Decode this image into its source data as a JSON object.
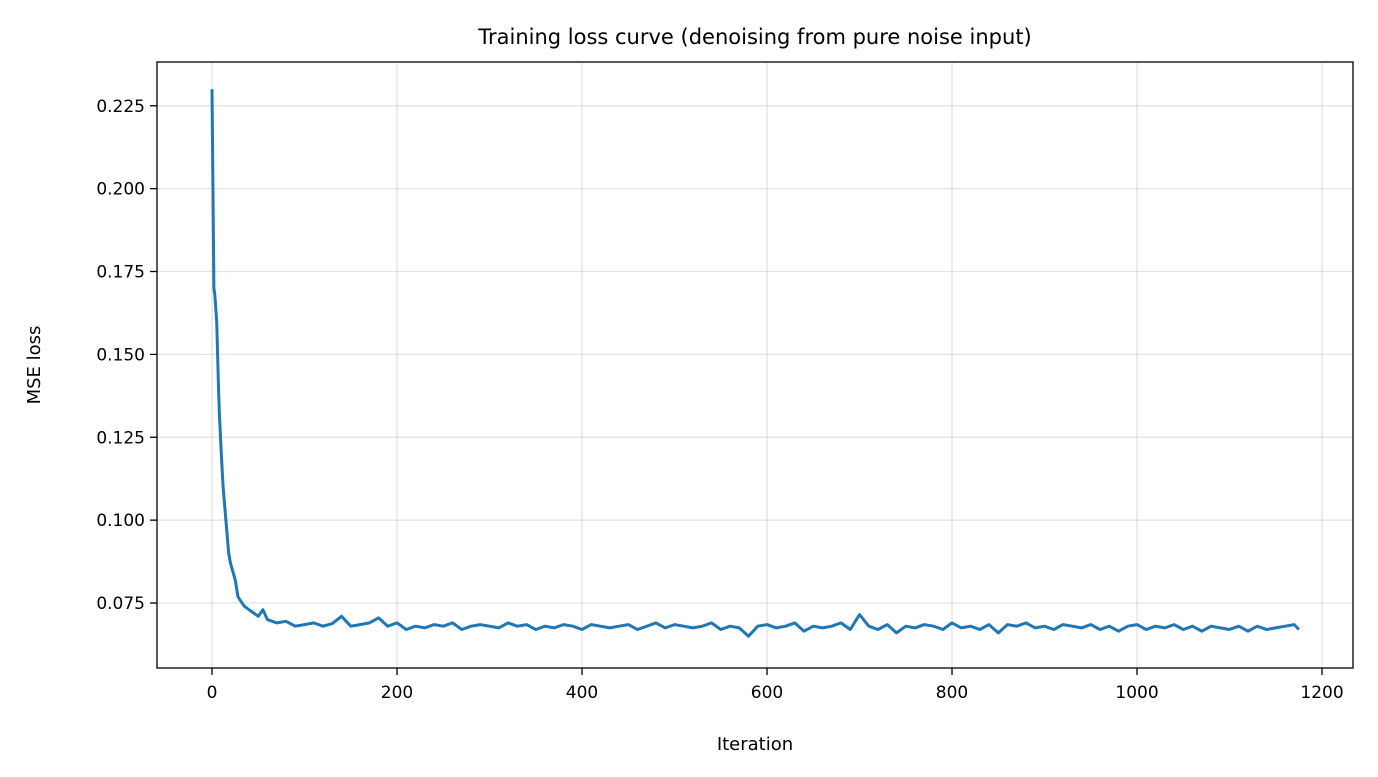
{
  "chart_data": {
    "type": "line",
    "title": "Training loss curve (denoising from pure noise input)",
    "xlabel": "Iteration",
    "ylabel": "MSE loss",
    "xlim": [
      -59.5,
      1233.5
    ],
    "ylim": [
      0.0554,
      0.2382
    ],
    "xticks": [
      0,
      200,
      400,
      600,
      800,
      1000,
      1200
    ],
    "xtick_labels": [
      "0",
      "200",
      "400",
      "600",
      "800",
      "1000",
      "1200"
    ],
    "yticks": [
      0.075,
      0.1,
      0.125,
      0.15,
      0.175,
      0.2,
      0.225
    ],
    "ytick_labels": [
      "0.075",
      "0.100",
      "0.125",
      "0.150",
      "0.175",
      "0.200",
      "0.225"
    ],
    "grid": true,
    "color": "#1f77b4",
    "series": [
      {
        "x": [
          0,
          2,
          3,
          5,
          7,
          8,
          10,
          12,
          15,
          18,
          20,
          25,
          28,
          30,
          35,
          40,
          45,
          50,
          55,
          60,
          70,
          80,
          90,
          100,
          110,
          120,
          130,
          140,
          150,
          160,
          170,
          180,
          190,
          200,
          210,
          220,
          230,
          240,
          250,
          260,
          270,
          280,
          290,
          300,
          310,
          320,
          330,
          340,
          350,
          360,
          370,
          380,
          390,
          400,
          410,
          420,
          430,
          440,
          450,
          460,
          470,
          480,
          490,
          500,
          510,
          520,
          530,
          540,
          550,
          560,
          570,
          580,
          590,
          600,
          610,
          620,
          630,
          640,
          650,
          660,
          670,
          680,
          690,
          700,
          710,
          720,
          730,
          740,
          750,
          760,
          770,
          780,
          790,
          800,
          810,
          820,
          830,
          840,
          850,
          860,
          870,
          880,
          890,
          900,
          910,
          920,
          930,
          940,
          950,
          960,
          970,
          980,
          990,
          1000,
          1010,
          1020,
          1030,
          1040,
          1050,
          1060,
          1070,
          1080,
          1090,
          1100,
          1110,
          1120,
          1130,
          1140,
          1150,
          1160,
          1170,
          1175
        ],
        "y": [
          0.23,
          0.17,
          0.168,
          0.16,
          0.14,
          0.132,
          0.12,
          0.11,
          0.1,
          0.09,
          0.087,
          0.082,
          0.077,
          0.076,
          0.074,
          0.073,
          0.072,
          0.071,
          0.073,
          0.07,
          0.069,
          0.0695,
          0.068,
          0.0685,
          0.069,
          0.068,
          0.0688,
          0.071,
          0.068,
          0.0685,
          0.069,
          0.0705,
          0.068,
          0.069,
          0.067,
          0.068,
          0.0675,
          0.0685,
          0.068,
          0.069,
          0.067,
          0.068,
          0.0685,
          0.068,
          0.0675,
          0.069,
          0.068,
          0.0685,
          0.067,
          0.068,
          0.0675,
          0.0685,
          0.068,
          0.067,
          0.0685,
          0.068,
          0.0675,
          0.068,
          0.0685,
          0.067,
          0.068,
          0.069,
          0.0675,
          0.0685,
          0.068,
          0.0675,
          0.068,
          0.069,
          0.067,
          0.068,
          0.0675,
          0.065,
          0.068,
          0.0685,
          0.0675,
          0.068,
          0.069,
          0.0665,
          0.068,
          0.0675,
          0.068,
          0.069,
          0.067,
          0.0715,
          0.068,
          0.067,
          0.0685,
          0.066,
          0.068,
          0.0675,
          0.0685,
          0.068,
          0.067,
          0.069,
          0.0675,
          0.068,
          0.067,
          0.0685,
          0.066,
          0.0685,
          0.068,
          0.069,
          0.0675,
          0.068,
          0.067,
          0.0685,
          0.068,
          0.0675,
          0.0685,
          0.067,
          0.068,
          0.0665,
          0.068,
          0.0685,
          0.067,
          0.068,
          0.0675,
          0.0685,
          0.067,
          0.068,
          0.0665,
          0.068,
          0.0675,
          0.067,
          0.068,
          0.0665,
          0.068,
          0.067,
          0.0675,
          0.068,
          0.0685,
          0.067
        ]
      }
    ]
  }
}
